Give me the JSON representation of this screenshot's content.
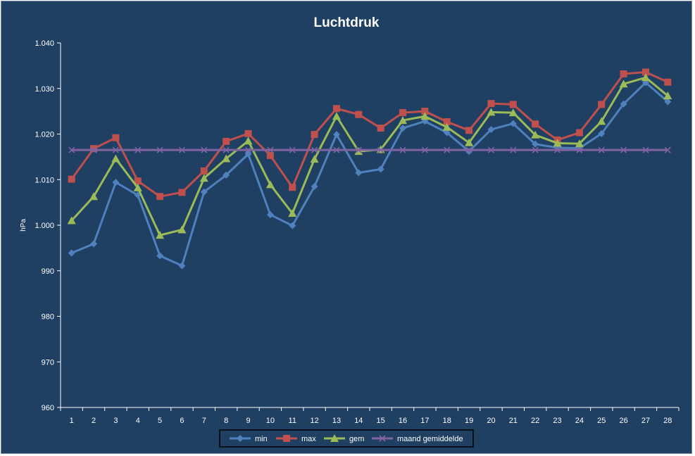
{
  "chart_data": {
    "type": "line",
    "title": "Luchtdruk",
    "xlabel": "",
    "ylabel": "hPa",
    "ylim": [
      960,
      1040
    ],
    "yticks": [
      960,
      970,
      980,
      990,
      1000,
      1010,
      1020,
      1030,
      1040
    ],
    "ytick_labels": [
      "960",
      "970",
      "980",
      "990",
      "1.000",
      "1.010",
      "1.020",
      "1.030",
      "1.040"
    ],
    "categories": [
      "1",
      "2",
      "3",
      "4",
      "5",
      "6",
      "7",
      "8",
      "9",
      "10",
      "11",
      "12",
      "13",
      "14",
      "15",
      "16",
      "17",
      "18",
      "19",
      "20",
      "21",
      "22",
      "23",
      "24",
      "25",
      "26",
      "27",
      "28"
    ],
    "grid": false,
    "legend_position": "bottom",
    "series": [
      {
        "name": "min",
        "color": "#4f81bd",
        "marker": "diamond",
        "values": [
          993.9,
          995.9,
          1009.4,
          1006.6,
          993.3,
          991.1,
          1007.3,
          1011.0,
          1015.6,
          1002.3,
          999.9,
          1008.5,
          1019.9,
          1011.5,
          1012.3,
          1021.3,
          1022.8,
          1020.3,
          1016.2,
          1021.0,
          1022.3,
          1017.8,
          1017.0,
          1016.9,
          1020.1,
          1026.6,
          1031.3,
          1027.1
        ]
      },
      {
        "name": "max",
        "color": "#c0504d",
        "marker": "square",
        "values": [
          1010.1,
          1016.8,
          1019.2,
          1009.7,
          1006.3,
          1007.2,
          1011.9,
          1018.4,
          1020.1,
          1015.3,
          1008.3,
          1019.9,
          1025.6,
          1024.3,
          1021.3,
          1024.7,
          1025.0,
          1022.7,
          1020.8,
          1026.7,
          1026.5,
          1022.2,
          1018.7,
          1020.3,
          1026.5,
          1033.2,
          1033.6,
          1031.4
        ]
      },
      {
        "name": "gem",
        "color": "#9bbb59",
        "marker": "triangle",
        "values": [
          1001.0,
          1006.3,
          1014.6,
          1008.2,
          997.8,
          999.0,
          1010.3,
          1014.6,
          1018.5,
          1008.9,
          1002.6,
          1014.5,
          1023.9,
          1016.2,
          1016.6,
          1023.0,
          1023.9,
          1021.5,
          1018.1,
          1024.8,
          1024.7,
          1019.8,
          1018.0,
          1017.9,
          1022.8,
          1031.0,
          1032.4,
          1028.4
        ]
      },
      {
        "name": "maand gemiddelde",
        "color": "#8064a2",
        "marker": "x",
        "values": [
          1016.5,
          1016.5,
          1016.5,
          1016.5,
          1016.5,
          1016.5,
          1016.5,
          1016.5,
          1016.5,
          1016.5,
          1016.5,
          1016.5,
          1016.5,
          1016.5,
          1016.5,
          1016.5,
          1016.5,
          1016.5,
          1016.5,
          1016.5,
          1016.5,
          1016.5,
          1016.5,
          1016.5,
          1016.5,
          1016.5,
          1016.5,
          1016.5
        ]
      }
    ]
  }
}
